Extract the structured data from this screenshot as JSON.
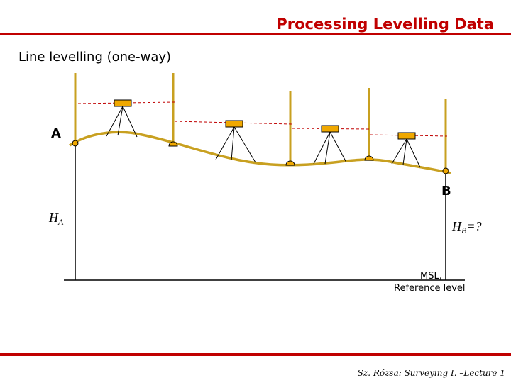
{
  "header": {
    "title": "Processing Levelling Data"
  },
  "slide": {
    "subtitle": "Line levelling (one-way)"
  },
  "diagram": {
    "point_a_label": "A",
    "point_b_label": "B",
    "height_a_label": "H",
    "height_a_subscript": "A",
    "height_b_label": "H",
    "height_b_subscript": "B",
    "height_b_suffix": "=?",
    "reference_label_line1": "MSL,",
    "reference_label_line2": "Reference level",
    "colors": {
      "terrain": "#c8a020",
      "staff": "#c8a020",
      "instrument": "#f0a800",
      "sight_line": "#c00000",
      "tripod": "#000000"
    }
  },
  "footer": {
    "citation": "Sz. Rózsa: Surveying I. –Lecture 1"
  }
}
